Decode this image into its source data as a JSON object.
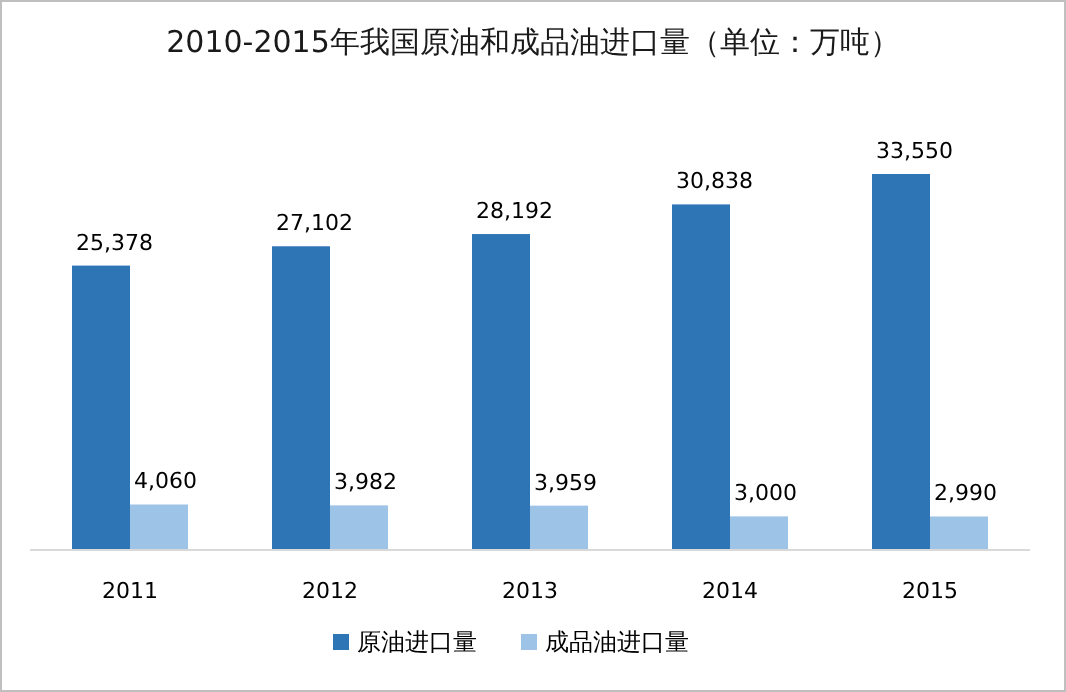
{
  "chart_data": {
    "type": "bar",
    "title": "2010-2015年我国原油和成品油进口量（单位：万吨）",
    "categories": [
      "2011",
      "2012",
      "2013",
      "2014",
      "2015"
    ],
    "series": [
      {
        "name": "原油进口量",
        "color": "#2e75b6",
        "values": [
          25378,
          27102,
          28192,
          30838,
          33550
        ],
        "value_labels": [
          "25,378",
          "27,102",
          "28,192",
          "30,838",
          "33,550"
        ]
      },
      {
        "name": "成品油进口量",
        "color": "#9dc3e6",
        "values": [
          4060,
          3982,
          3959,
          3000,
          2990
        ],
        "value_labels": [
          "4,060",
          "3,982",
          "3,959",
          "3,000",
          "2,990"
        ]
      }
    ],
    "tick_labels": "x",
    "legend": "bottom"
  }
}
